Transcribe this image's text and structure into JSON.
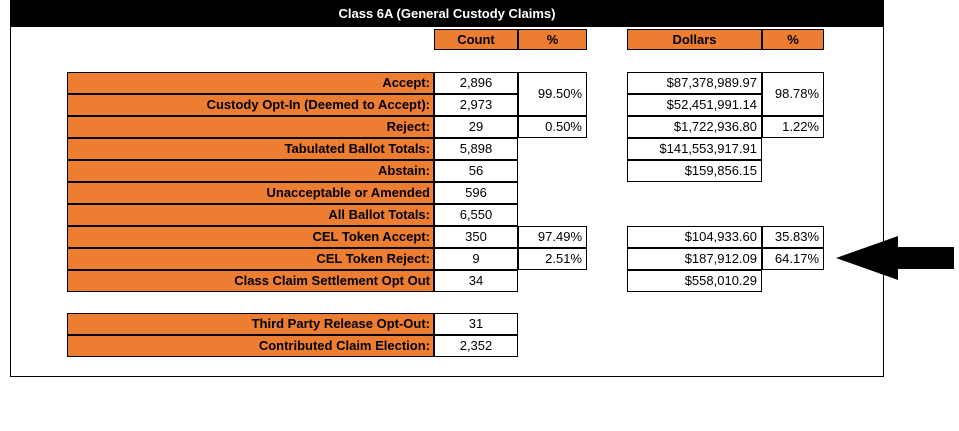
{
  "title": "Class 6A (General Custody Claims)",
  "headers": {
    "count": "Count",
    "count_pct": "%",
    "dollars": "Dollars",
    "dollars_pct": "%"
  },
  "rows": [
    {
      "label": "Accept:",
      "count": "2,896",
      "dollars": "$87,378,989.97"
    },
    {
      "label": "Custody Opt-In (Deemed to Accept):",
      "count": "2,973",
      "dollars": "$52,451,991.14"
    },
    {
      "label": "Reject:",
      "count": "29",
      "dollars": "$1,722,936.80"
    },
    {
      "label": "Tabulated Ballot Totals:",
      "count": "5,898",
      "dollars": "$141,553,917.91"
    },
    {
      "label": "Abstain:",
      "count": "56",
      "dollars": "$159,856.15"
    },
    {
      "label": "Unacceptable or Amended",
      "count": "596"
    },
    {
      "label": "All Ballot Totals:",
      "count": "6,550"
    },
    {
      "label": "CEL Token Accept:",
      "count": "350",
      "dollars": "$104,933.60"
    },
    {
      "label": "CEL Token Reject:",
      "count": "9",
      "dollars": "$187,912.09"
    },
    {
      "label": "Class Claim Settlement Opt Out",
      "count": "34",
      "dollars": "$558,010.29"
    }
  ],
  "pcts": {
    "accept_count": "99.50%",
    "reject_count": "0.50%",
    "accept_dollars": "98.78%",
    "reject_dollars": "1.22%",
    "cel_accept_count": "97.49%",
    "cel_reject_count": "2.51%",
    "cel_accept_dollars": "35.83%",
    "cel_reject_dollars": "64.17%"
  },
  "bottom_rows": [
    {
      "label": "Third Party Release Opt-Out:",
      "count": "31"
    },
    {
      "label": "Contributed Claim Election:",
      "count": "2,352"
    }
  ],
  "colors": {
    "accent": "#ed7d31",
    "title_bg": "#000000",
    "arrow": "#000000"
  },
  "icons": {
    "pointer": "arrow-left-icon"
  }
}
